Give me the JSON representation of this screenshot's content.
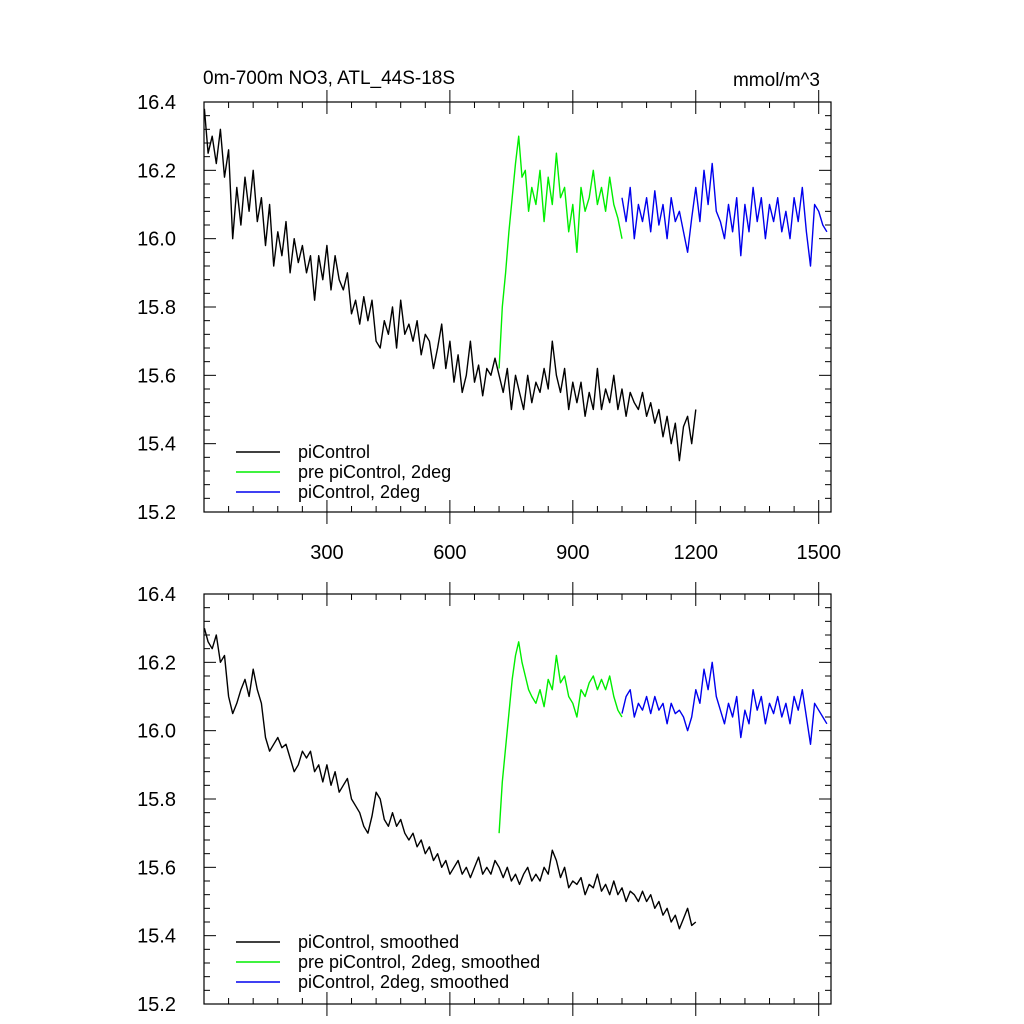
{
  "chart_data": [
    {
      "type": "line",
      "title_left": "0m-700m NO3, ATL_44S-18S",
      "title_right": "mmol/m^3",
      "xlim": [
        0,
        1530
      ],
      "ylim": [
        15.2,
        16.4
      ],
      "x_ticks": [
        300,
        600,
        900,
        1200,
        1500
      ],
      "x_tick_labels": [
        "300",
        "600",
        "900",
        "1200",
        "1500"
      ],
      "y_ticks": [
        15.2,
        15.4,
        15.6,
        15.8,
        16.0,
        16.2,
        16.4
      ],
      "y_tick_labels": [
        "15.2",
        "15.4",
        "15.6",
        "15.8",
        "16.0",
        "16.2",
        "16.4"
      ],
      "legend_location": "bottom-left",
      "series": [
        {
          "name": "piControl",
          "color": "#000000",
          "x": [
            1,
            10,
            20,
            30,
            40,
            50,
            60,
            70,
            80,
            90,
            100,
            110,
            120,
            130,
            140,
            150,
            160,
            170,
            180,
            190,
            200,
            210,
            220,
            230,
            240,
            250,
            260,
            270,
            280,
            290,
            300,
            310,
            320,
            330,
            340,
            350,
            360,
            370,
            380,
            390,
            400,
            410,
            420,
            430,
            440,
            450,
            460,
            470,
            480,
            490,
            500,
            510,
            520,
            530,
            540,
            550,
            560,
            570,
            580,
            590,
            600,
            610,
            620,
            630,
            640,
            650,
            660,
            670,
            680,
            690,
            700,
            710,
            720,
            730,
            740,
            750,
            760,
            770,
            780,
            790,
            800,
            810,
            820,
            830,
            840,
            850,
            860,
            870,
            880,
            890,
            900,
            910,
            920,
            930,
            940,
            950,
            960,
            970,
            980,
            990,
            1000,
            1010,
            1020,
            1030,
            1040,
            1050,
            1060,
            1070,
            1080,
            1090,
            1100,
            1110,
            1120,
            1130,
            1140,
            1150,
            1160,
            1170,
            1180,
            1190,
            1200
          ],
          "y": [
            16.38,
            16.25,
            16.3,
            16.22,
            16.32,
            16.18,
            16.26,
            16.0,
            16.15,
            16.04,
            16.18,
            16.08,
            16.2,
            16.05,
            16.12,
            15.98,
            16.1,
            15.92,
            16.02,
            15.95,
            16.05,
            15.9,
            16.0,
            15.93,
            15.98,
            15.9,
            15.95,
            15.82,
            15.95,
            15.88,
            15.98,
            15.85,
            15.95,
            15.88,
            15.85,
            15.9,
            15.78,
            15.82,
            15.75,
            15.83,
            15.76,
            15.82,
            15.7,
            15.68,
            15.76,
            15.72,
            15.8,
            15.68,
            15.82,
            15.72,
            15.75,
            15.7,
            15.76,
            15.66,
            15.72,
            15.7,
            15.62,
            15.68,
            15.75,
            15.62,
            15.7,
            15.58,
            15.66,
            15.55,
            15.6,
            15.7,
            15.58,
            15.63,
            15.54,
            15.62,
            15.6,
            15.65,
            15.6,
            15.55,
            15.62,
            15.5,
            15.6,
            15.55,
            15.5,
            15.6,
            15.52,
            15.58,
            15.55,
            15.62,
            15.56,
            15.7,
            15.6,
            15.55,
            15.62,
            15.5,
            15.58,
            15.52,
            15.58,
            15.48,
            15.55,
            15.5,
            15.62,
            15.5,
            15.56,
            15.52,
            15.6,
            15.5,
            15.56,
            15.48,
            15.55,
            15.52,
            15.5,
            15.55,
            15.48,
            15.52,
            15.46,
            15.5,
            15.42,
            15.48,
            15.4,
            15.46,
            15.35,
            15.45,
            15.48,
            15.4,
            15.5
          ]
        },
        {
          "name": "pre piControl, 2deg",
          "color": "#00ee00",
          "x": [
            720,
            728,
            736,
            744,
            752,
            760,
            768,
            776,
            784,
            792,
            800,
            810,
            820,
            830,
            840,
            850,
            860,
            870,
            880,
            890,
            900,
            910,
            920,
            930,
            940,
            950,
            960,
            970,
            980,
            990,
            1000,
            1010,
            1020
          ],
          "y": [
            15.62,
            15.8,
            15.9,
            16.02,
            16.12,
            16.22,
            16.3,
            16.18,
            16.2,
            16.08,
            16.15,
            16.1,
            16.2,
            16.05,
            16.18,
            16.1,
            16.25,
            16.12,
            16.15,
            16.02,
            16.1,
            15.96,
            16.15,
            16.08,
            16.12,
            16.2,
            16.1,
            16.15,
            16.08,
            16.18,
            16.1,
            16.06,
            16.0
          ]
        },
        {
          "name": "piControl, 2deg",
          "color": "#0000ee",
          "x": [
            1020,
            1030,
            1040,
            1050,
            1060,
            1070,
            1080,
            1090,
            1100,
            1110,
            1120,
            1130,
            1140,
            1150,
            1160,
            1170,
            1180,
            1190,
            1200,
            1210,
            1220,
            1230,
            1240,
            1250,
            1260,
            1270,
            1280,
            1290,
            1300,
            1310,
            1320,
            1330,
            1340,
            1350,
            1360,
            1370,
            1380,
            1390,
            1400,
            1410,
            1420,
            1430,
            1440,
            1450,
            1460,
            1470,
            1480,
            1490,
            1500,
            1510,
            1520
          ],
          "y": [
            16.12,
            16.05,
            16.15,
            16.0,
            16.1,
            16.05,
            16.12,
            16.02,
            16.14,
            16.04,
            16.1,
            16.0,
            16.12,
            16.05,
            16.08,
            16.02,
            15.96,
            16.06,
            16.15,
            16.05,
            16.2,
            16.1,
            16.22,
            16.08,
            16.05,
            16.0,
            16.1,
            16.02,
            16.12,
            15.95,
            16.1,
            16.02,
            16.15,
            16.05,
            16.12,
            16.0,
            16.1,
            16.05,
            16.12,
            16.02,
            16.08,
            16.0,
            16.12,
            16.05,
            16.15,
            16.02,
            15.92,
            16.1,
            16.08,
            16.04,
            16.02
          ]
        }
      ]
    },
    {
      "type": "line",
      "title_left": "",
      "title_right": "",
      "xlim": [
        0,
        1530
      ],
      "ylim": [
        15.2,
        16.4
      ],
      "x_ticks": [
        300,
        600,
        900,
        1200,
        1500
      ],
      "x_tick_labels": [],
      "y_ticks": [
        15.2,
        15.4,
        15.6,
        15.8,
        16.0,
        16.2,
        16.4
      ],
      "y_tick_labels": [
        "15.2",
        "15.4",
        "15.6",
        "15.8",
        "16.0",
        "16.2",
        "16.4"
      ],
      "legend_location": "bottom-left",
      "series": [
        {
          "name": "piControl, smoothed",
          "color": "#000000",
          "x": [
            1,
            10,
            20,
            30,
            40,
            50,
            60,
            70,
            80,
            90,
            100,
            110,
            120,
            130,
            140,
            150,
            160,
            170,
            180,
            190,
            200,
            210,
            220,
            230,
            240,
            250,
            260,
            270,
            280,
            290,
            300,
            310,
            320,
            330,
            340,
            350,
            360,
            370,
            380,
            390,
            400,
            410,
            420,
            430,
            440,
            450,
            460,
            470,
            480,
            490,
            500,
            510,
            520,
            530,
            540,
            550,
            560,
            570,
            580,
            590,
            600,
            610,
            620,
            630,
            640,
            650,
            660,
            670,
            680,
            690,
            700,
            710,
            720,
            730,
            740,
            750,
            760,
            770,
            780,
            790,
            800,
            810,
            820,
            830,
            840,
            850,
            860,
            870,
            880,
            890,
            900,
            910,
            920,
            930,
            940,
            950,
            960,
            970,
            980,
            990,
            1000,
            1010,
            1020,
            1030,
            1040,
            1050,
            1060,
            1070,
            1080,
            1090,
            1100,
            1110,
            1120,
            1130,
            1140,
            1150,
            1160,
            1170,
            1180,
            1190,
            1200
          ],
          "y": [
            16.3,
            16.26,
            16.24,
            16.28,
            16.2,
            16.22,
            16.1,
            16.05,
            16.08,
            16.12,
            16.15,
            16.1,
            16.18,
            16.12,
            16.08,
            15.98,
            15.94,
            15.96,
            15.98,
            15.95,
            15.96,
            15.92,
            15.88,
            15.9,
            15.94,
            15.92,
            15.94,
            15.88,
            15.9,
            15.85,
            15.9,
            15.84,
            15.88,
            15.82,
            15.84,
            15.86,
            15.8,
            15.78,
            15.76,
            15.72,
            15.7,
            15.75,
            15.82,
            15.8,
            15.74,
            15.72,
            15.76,
            15.72,
            15.74,
            15.7,
            15.68,
            15.7,
            15.66,
            15.68,
            15.64,
            15.66,
            15.62,
            15.64,
            15.6,
            15.62,
            15.58,
            15.6,
            15.62,
            15.58,
            15.6,
            15.57,
            15.6,
            15.63,
            15.58,
            15.6,
            15.58,
            15.62,
            15.6,
            15.57,
            15.6,
            15.56,
            15.58,
            15.55,
            15.58,
            15.6,
            15.56,
            15.58,
            15.56,
            15.6,
            15.58,
            15.65,
            15.62,
            15.57,
            15.6,
            15.54,
            15.56,
            15.55,
            15.57,
            15.52,
            15.55,
            15.54,
            15.58,
            15.53,
            15.55,
            15.52,
            15.56,
            15.52,
            15.54,
            15.5,
            15.53,
            15.52,
            15.5,
            15.53,
            15.5,
            15.52,
            15.48,
            15.5,
            15.46,
            15.48,
            15.44,
            15.46,
            15.42,
            15.45,
            15.48,
            15.43,
            15.44
          ]
        },
        {
          "name": "pre piControl, 2deg, smoothed",
          "color": "#00ee00",
          "x": [
            720,
            728,
            736,
            744,
            752,
            760,
            768,
            776,
            784,
            792,
            800,
            810,
            820,
            830,
            840,
            850,
            860,
            870,
            880,
            890,
            900,
            910,
            920,
            930,
            940,
            950,
            960,
            970,
            980,
            990,
            1000,
            1010,
            1020
          ],
          "y": [
            15.7,
            15.85,
            15.95,
            16.05,
            16.15,
            16.22,
            16.26,
            16.2,
            16.16,
            16.12,
            16.1,
            16.08,
            16.12,
            16.07,
            16.15,
            16.12,
            16.22,
            16.14,
            16.16,
            16.1,
            16.08,
            16.04,
            16.12,
            16.1,
            16.14,
            16.16,
            16.12,
            16.15,
            16.12,
            16.16,
            16.1,
            16.06,
            16.04
          ]
        },
        {
          "name": "piControl, 2deg, smoothed",
          "color": "#0000ee",
          "x": [
            1020,
            1030,
            1040,
            1050,
            1060,
            1070,
            1080,
            1090,
            1100,
            1110,
            1120,
            1130,
            1140,
            1150,
            1160,
            1170,
            1180,
            1190,
            1200,
            1210,
            1220,
            1230,
            1240,
            1250,
            1260,
            1270,
            1280,
            1290,
            1300,
            1310,
            1320,
            1330,
            1340,
            1350,
            1360,
            1370,
            1380,
            1390,
            1400,
            1410,
            1420,
            1430,
            1440,
            1450,
            1460,
            1470,
            1480,
            1490,
            1500,
            1510,
            1520
          ],
          "y": [
            16.05,
            16.1,
            16.12,
            16.04,
            16.08,
            16.06,
            16.1,
            16.05,
            16.1,
            16.06,
            16.08,
            16.02,
            16.08,
            16.05,
            16.06,
            16.04,
            16.0,
            16.04,
            16.12,
            16.08,
            16.18,
            16.12,
            16.2,
            16.1,
            16.06,
            16.02,
            16.08,
            16.04,
            16.1,
            15.98,
            16.06,
            16.02,
            16.12,
            16.06,
            16.1,
            16.02,
            16.08,
            16.05,
            16.1,
            16.04,
            16.08,
            16.02,
            16.1,
            16.06,
            16.12,
            16.04,
            15.96,
            16.08,
            16.06,
            16.04,
            16.02
          ]
        }
      ]
    }
  ]
}
